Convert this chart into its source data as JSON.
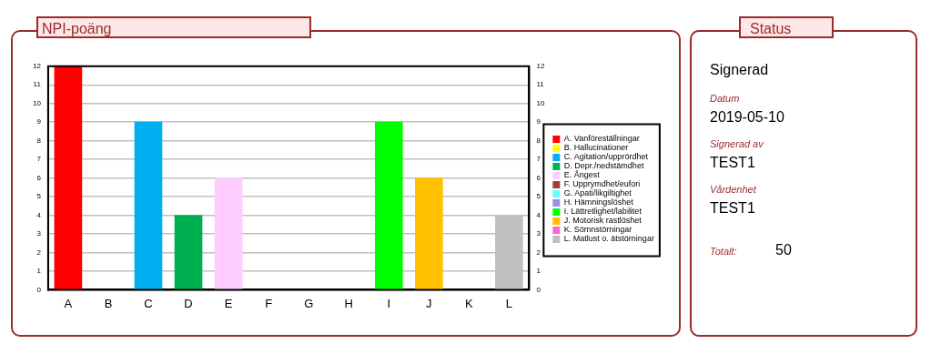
{
  "chart_data": [
    {
      "type": "bar",
      "title": "NPI-poäng",
      "categories": [
        "A",
        "B",
        "C",
        "D",
        "E",
        "F",
        "G",
        "H",
        "I",
        "J",
        "K",
        "L"
      ],
      "grid": "y",
      "legend": "right",
      "ylim": [
        0,
        12
      ],
      "yticks": [
        0,
        1,
        2,
        3,
        4,
        5,
        6,
        7,
        8,
        9,
        10,
        11,
        12
      ],
      "y2lim": [
        0,
        12
      ],
      "y2ticks": [
        0,
        1,
        2,
        3,
        4,
        5,
        6,
        7,
        8,
        9,
        10,
        11,
        12
      ],
      "series": [
        {
          "name": "A. Vanföreställningar",
          "color": "#ff0000",
          "values": [
            12,
            null,
            null,
            null,
            null,
            null,
            null,
            null,
            null,
            null,
            null,
            null
          ]
        },
        {
          "name": "B. Hallucinationer",
          "color": "#ffff00",
          "values": [
            null,
            0,
            null,
            null,
            null,
            null,
            null,
            null,
            null,
            null,
            null,
            null
          ]
        },
        {
          "name": "C. Agitation/upprördhet",
          "color": "#00b0f0",
          "values": [
            null,
            null,
            9,
            null,
            null,
            null,
            null,
            null,
            null,
            null,
            null,
            null
          ]
        },
        {
          "name": "D. Depr./nedstämdhet",
          "color": "#00b050",
          "values": [
            null,
            null,
            null,
            4,
            null,
            null,
            null,
            null,
            null,
            null,
            null,
            null
          ]
        },
        {
          "name": "E. Ångest",
          "color": "#ffccff",
          "values": [
            null,
            null,
            null,
            null,
            6,
            null,
            null,
            null,
            null,
            null,
            null,
            null
          ]
        },
        {
          "name": "F. Upprymdhet/eufori",
          "color": "#a83c3c",
          "values": [
            null,
            null,
            null,
            null,
            null,
            0,
            null,
            null,
            null,
            null,
            null,
            null
          ]
        },
        {
          "name": "G. Apati/likgiltighet",
          "color": "#66ffff",
          "values": [
            null,
            null,
            null,
            null,
            null,
            null,
            0,
            null,
            null,
            null,
            null,
            null
          ]
        },
        {
          "name": "H. Hämningslöshet",
          "color": "#9b8fe6",
          "values": [
            null,
            null,
            null,
            null,
            null,
            null,
            null,
            0,
            null,
            null,
            null,
            null
          ]
        },
        {
          "name": "I. Lättretlighet/labilitet",
          "color": "#00ff00",
          "values": [
            null,
            null,
            null,
            null,
            null,
            null,
            null,
            null,
            9,
            null,
            null,
            null
          ]
        },
        {
          "name": "J. Motorisk rastlöshet",
          "color": "#ffc000",
          "values": [
            null,
            null,
            null,
            null,
            null,
            null,
            null,
            null,
            null,
            6,
            null,
            null
          ]
        },
        {
          "name": "K. Sömnstörningar",
          "color": "#ff66cc",
          "values": [
            null,
            null,
            null,
            null,
            null,
            null,
            null,
            null,
            null,
            null,
            0,
            null
          ]
        },
        {
          "name": "L. Matlust o. ätstörningar",
          "color": "#bfbfbf",
          "values": [
            null,
            null,
            null,
            null,
            null,
            null,
            null,
            null,
            null,
            null,
            null,
            4
          ]
        }
      ]
    },
    {
      "type": "other",
      "title": "Status",
      "annotations": [
        "Signerad",
        "Datum",
        "2019-05-10",
        "Signerad av",
        "TEST1",
        "Vårdenhet",
        "TEST1",
        "Totalt:",
        "50"
      ]
    }
  ]
}
